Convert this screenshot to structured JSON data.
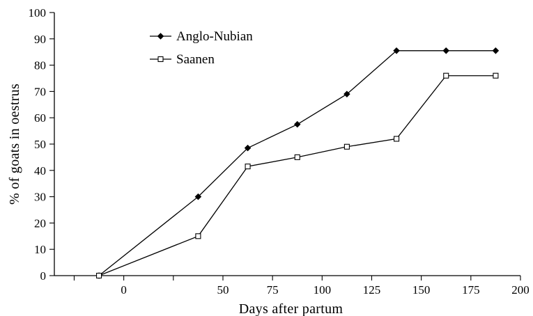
{
  "chart_data": {
    "type": "line",
    "xlabel": "Days after partum",
    "ylabel": "% of goats in oestrus",
    "xlim": [
      -35,
      200
    ],
    "ylim": [
      0,
      100
    ],
    "x_ticks": [
      0,
      50,
      75,
      100,
      125,
      150,
      175,
      200
    ],
    "y_ticks": [
      0,
      10,
      20,
      30,
      40,
      50,
      60,
      70,
      80,
      90,
      100
    ],
    "x_minor_ticks": [
      -25,
      25
    ],
    "grid": false,
    "legend_position": "top-left",
    "series": [
      {
        "name": "Anglo-Nubian",
        "marker": "filled-diamond",
        "x": [
          -12.5,
          37.5,
          62.5,
          87.5,
          112.5,
          137.5,
          162.5,
          187.5
        ],
        "y": [
          0,
          30,
          48.5,
          57.5,
          69,
          85.5,
          85.5,
          85.5
        ]
      },
      {
        "name": "Saanen",
        "marker": "open-square",
        "x": [
          -12.5,
          37.5,
          62.5,
          87.5,
          112.5,
          137.5,
          162.5,
          187.5
        ],
        "y": [
          0,
          15,
          41.5,
          45,
          49,
          52,
          76,
          76
        ]
      }
    ]
  }
}
